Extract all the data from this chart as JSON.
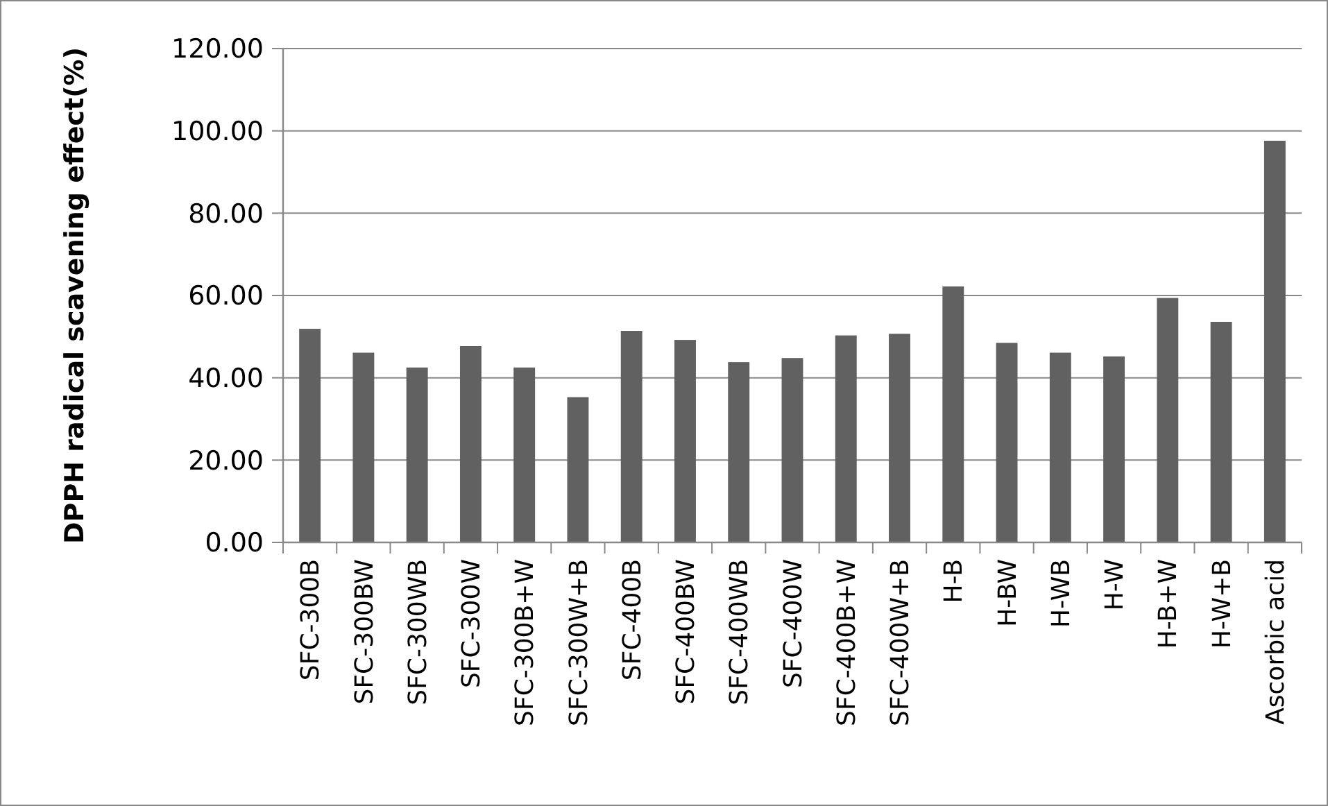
{
  "chart_data": {
    "type": "bar",
    "ylabel": "DPPH radical scavening effect(%)",
    "categories": [
      "SFC-300B",
      "SFC-300BW",
      "SFC-300WB",
      "SFC-300W",
      "SFC-300B+W",
      "SFC-300W+B",
      "SFC-400B",
      "SFC-400BW",
      "SFC-400WB",
      "SFC-400W",
      "SFC-400B+W",
      "SFC-400W+B",
      "H-B",
      "H-BW",
      "H-WB",
      "H-W",
      "H-B+W",
      "H-W+B",
      "Ascorbic acid"
    ],
    "values": [
      51.9,
      46.1,
      42.5,
      47.7,
      42.5,
      35.3,
      51.4,
      49.2,
      43.8,
      44.8,
      50.3,
      50.7,
      62.2,
      48.5,
      46.1,
      45.2,
      59.4,
      53.6,
      97.6
    ],
    "color": "#616161",
    "ylim": [
      0,
      120
    ],
    "yticks": [
      {
        "value": 0,
        "label": "0.00"
      },
      {
        "value": 20,
        "label": "20.00"
      },
      {
        "value": 40,
        "label": "40.00"
      },
      {
        "value": 60,
        "label": "60.00"
      },
      {
        "value": 80,
        "label": "80.00"
      },
      {
        "value": 100,
        "label": "100.00"
      },
      {
        "value": 120,
        "label": "120.00"
      }
    ],
    "grid": "y"
  }
}
